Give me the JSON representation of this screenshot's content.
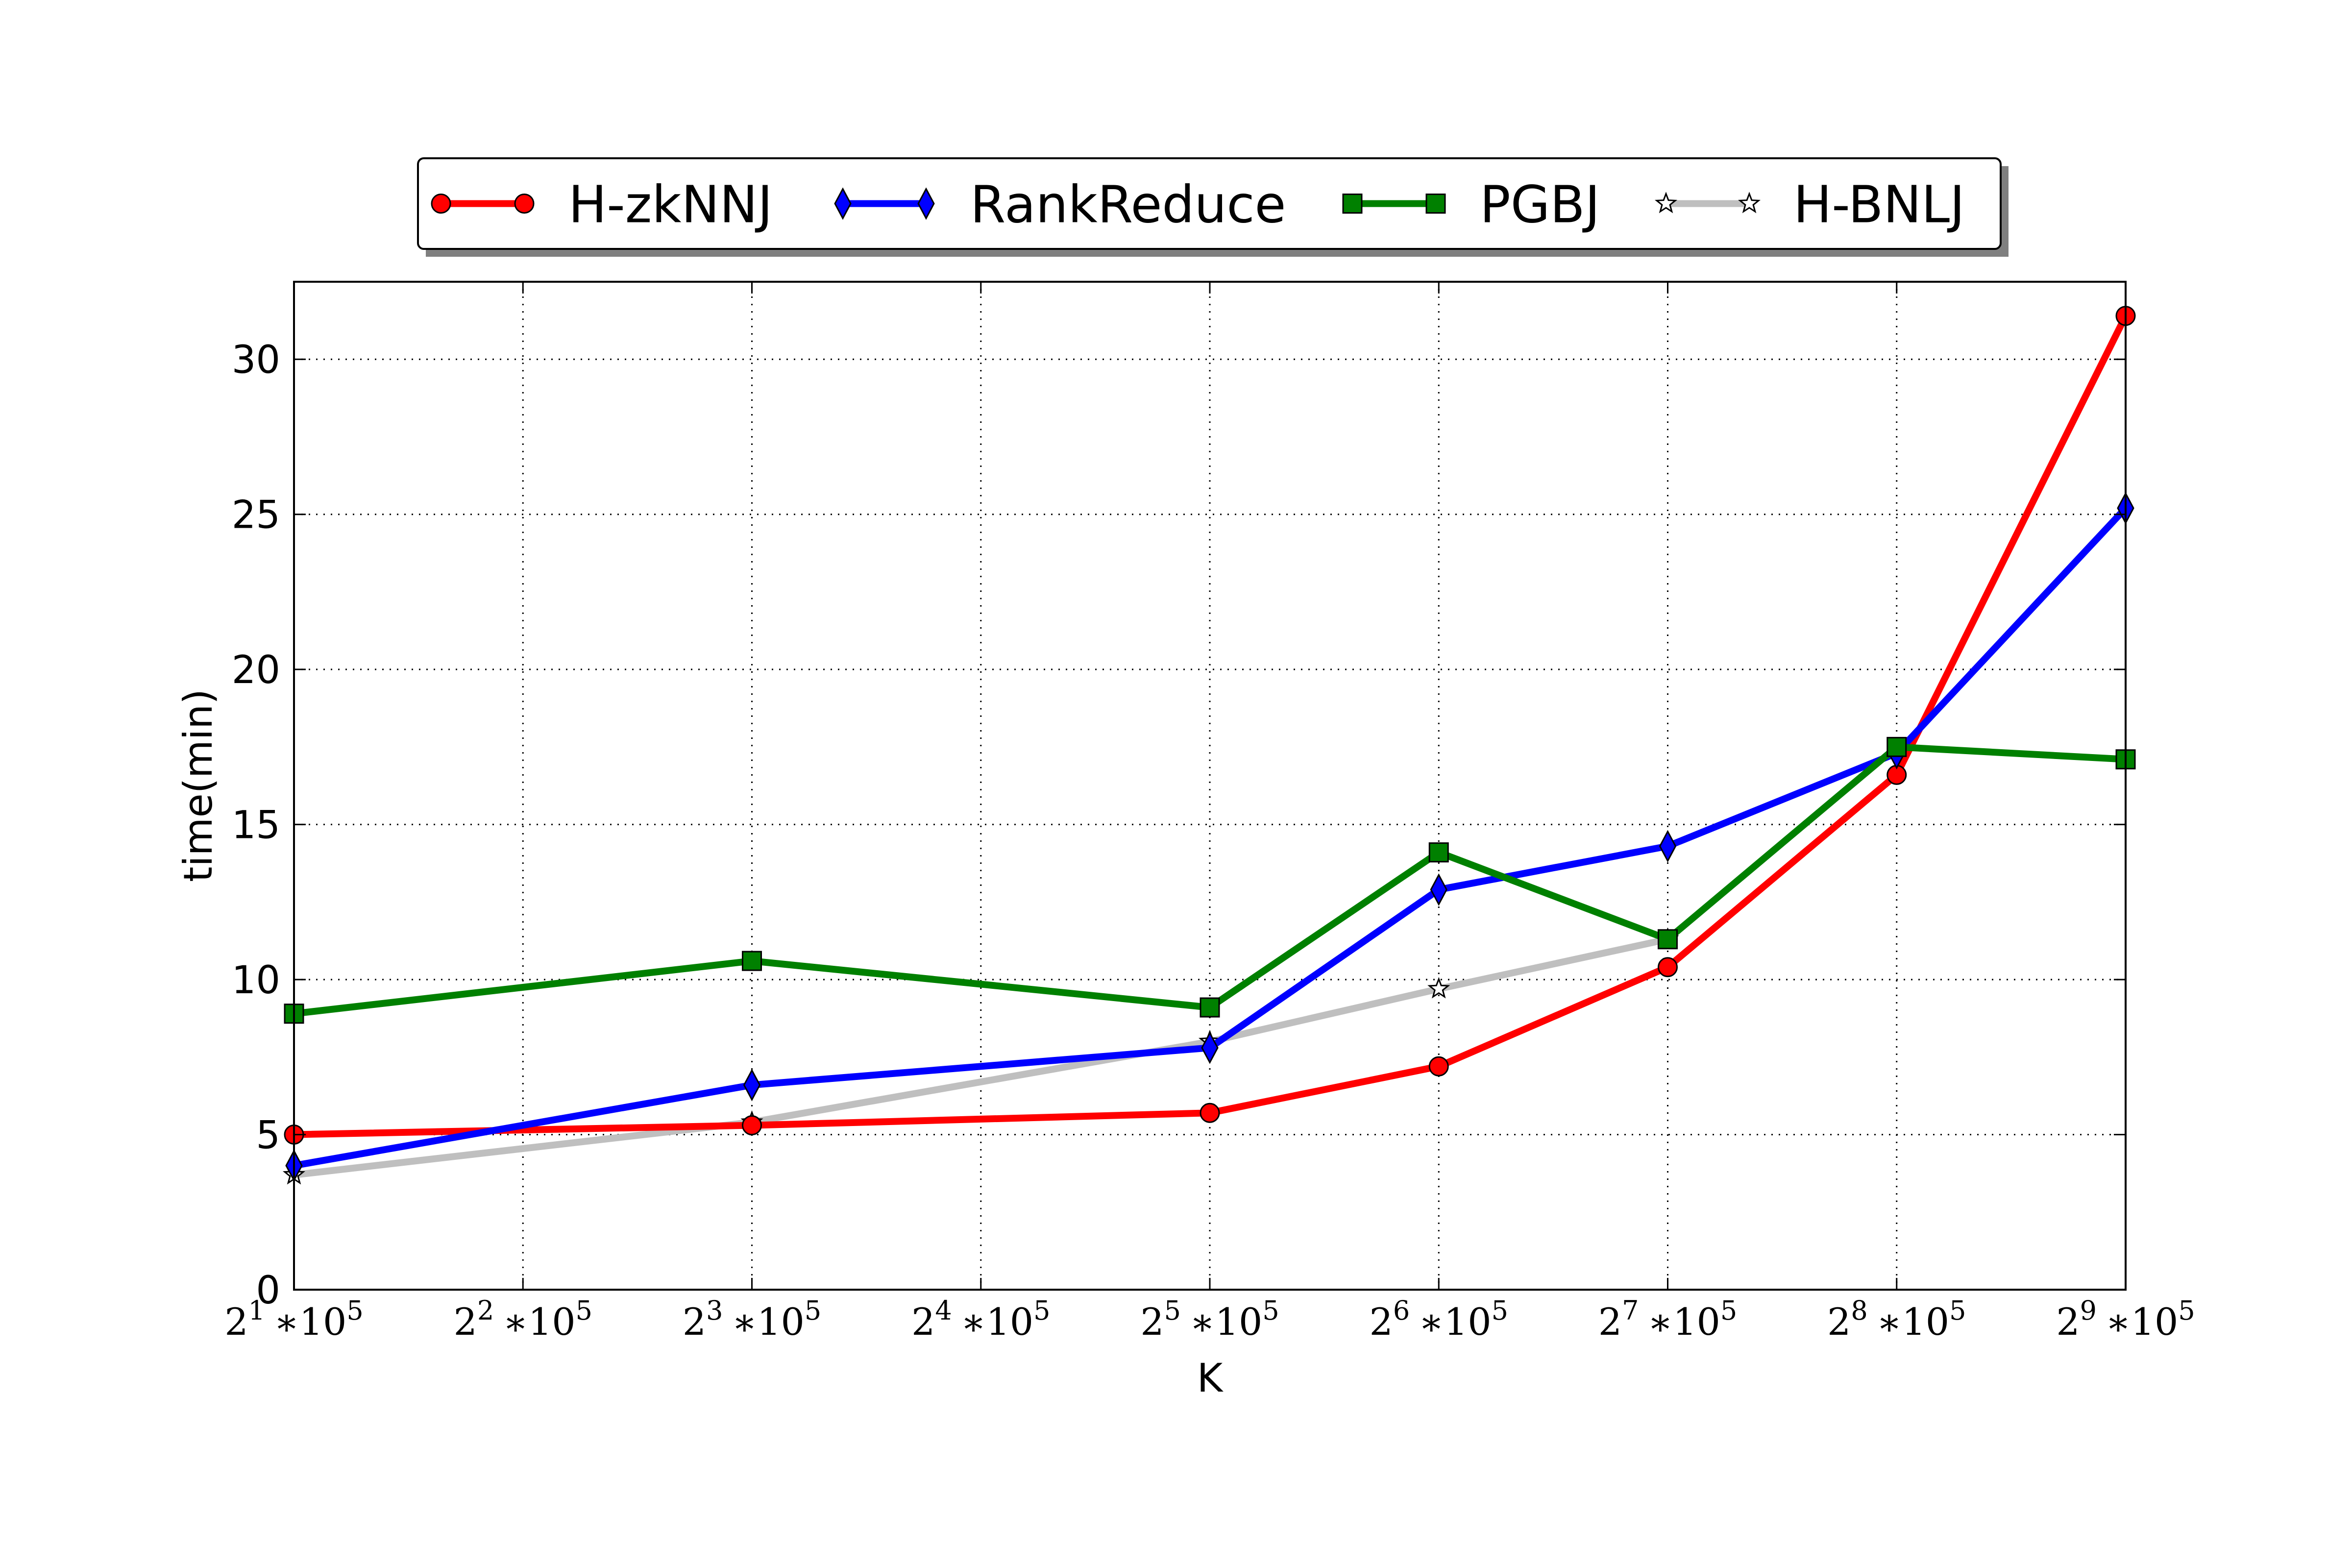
{
  "chart_data": {
    "type": "line",
    "xlabel": "K",
    "ylabel": "time(min)",
    "ylim": [
      0,
      32.5
    ],
    "y_ticks": [
      0,
      5,
      10,
      15,
      20,
      25,
      30
    ],
    "x_ticks": [
      {
        "base": "2",
        "exp": "1",
        "rest": "∗10",
        "rest_exp": "5"
      },
      {
        "base": "2",
        "exp": "2",
        "rest": "∗10",
        "rest_exp": "5"
      },
      {
        "base": "2",
        "exp": "3",
        "rest": "∗10",
        "rest_exp": "5"
      },
      {
        "base": "2",
        "exp": "4",
        "rest": "∗10",
        "rest_exp": "5"
      },
      {
        "base": "2",
        "exp": "5",
        "rest": "∗10",
        "rest_exp": "5"
      },
      {
        "base": "2",
        "exp": "6",
        "rest": "∗10",
        "rest_exp": "5"
      },
      {
        "base": "2",
        "exp": "7",
        "rest": "∗10",
        "rest_exp": "5"
      },
      {
        "base": "2",
        "exp": "8",
        "rest": "∗10",
        "rest_exp": "5"
      },
      {
        "base": "2",
        "exp": "9",
        "rest": "∗10",
        "rest_exp": "5"
      }
    ],
    "x_scale": "log2",
    "grid": true,
    "legend_position": "top-center",
    "series": [
      {
        "name": "H-zkNNJ",
        "color": "#ff0000",
        "marker": "circle",
        "x": [
          1,
          3,
          5,
          6,
          7,
          8,
          9
        ],
        "values": [
          5.0,
          5.3,
          5.7,
          7.2,
          10.4,
          16.6,
          31.4
        ]
      },
      {
        "name": "RankReduce",
        "color": "#0000ff",
        "marker": "diamond",
        "x": [
          1,
          3,
          5,
          6,
          7,
          8,
          9
        ],
        "values": [
          4.0,
          6.6,
          7.8,
          12.9,
          14.3,
          17.3,
          25.2
        ]
      },
      {
        "name": "PGBJ",
        "color": "#008000",
        "marker": "square",
        "x": [
          1,
          3,
          5,
          6,
          7,
          8,
          9
        ],
        "values": [
          8.9,
          10.6,
          9.1,
          14.1,
          11.3,
          17.5,
          17.1
        ]
      },
      {
        "name": "H-BNLJ",
        "color": "#bfbfbf",
        "marker": "star",
        "x": [
          1,
          3,
          5,
          6,
          7
        ],
        "values": [
          3.7,
          5.4,
          8.0,
          9.7,
          11.3
        ]
      }
    ]
  }
}
